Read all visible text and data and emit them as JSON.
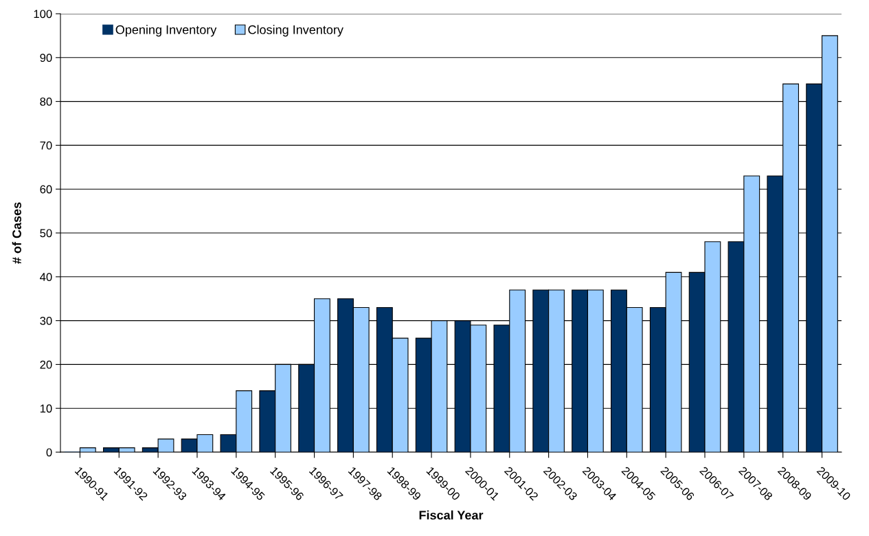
{
  "chart_data": {
    "type": "bar",
    "xlabel": "Fiscal Year",
    "ylabel": "# of Cases",
    "categories": [
      "1990-91",
      "1991-92",
      "1992-93",
      "1993-94",
      "1994-95",
      "1995-96",
      "1996-97",
      "1997-98",
      "1998-99",
      "1999-00",
      "2000-01",
      "2001-02",
      "2002-03",
      "2003-04",
      "2004-05",
      "2005-06",
      "2006-07",
      "2007-08",
      "2008-09",
      "2009-10"
    ],
    "series": [
      {
        "name": "Opening Inventory",
        "color": "#003366",
        "values": [
          0,
          1,
          1,
          3,
          4,
          14,
          20,
          35,
          33,
          26,
          30,
          29,
          37,
          37,
          37,
          33,
          41,
          48,
          63,
          84
        ]
      },
      {
        "name": "Closing Inventory",
        "color": "#99ccff",
        "values": [
          1,
          1,
          3,
          4,
          14,
          20,
          35,
          33,
          26,
          30,
          29,
          37,
          37,
          37,
          33,
          41,
          48,
          63,
          84,
          95
        ]
      }
    ],
    "ylim": [
      0,
      100
    ],
    "yticks": [
      0,
      10,
      20,
      30,
      40,
      50,
      60,
      70,
      80,
      90,
      100
    ],
    "grid": "y",
    "legend": "top left"
  }
}
